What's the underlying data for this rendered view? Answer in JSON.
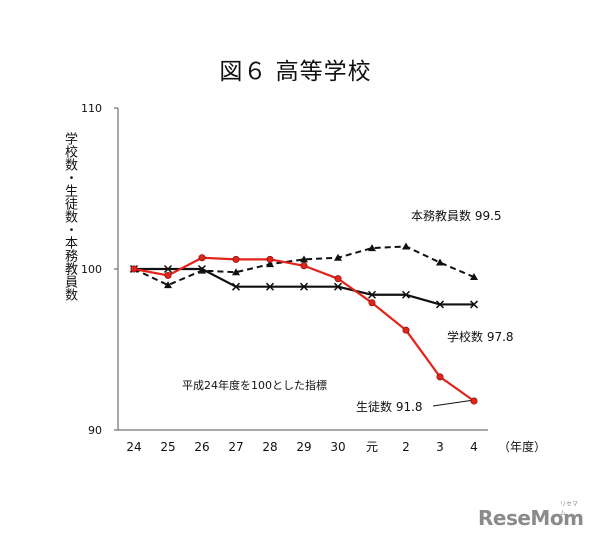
{
  "title": "図６ 高等学校",
  "ylabel": "学校数・生徒数・本務教員数",
  "note": "平成24年度を100とした指標",
  "logo": {
    "text": "ReseMom",
    "small": "リセマム"
  },
  "chart_data": {
    "type": "line",
    "title": "図６ 高等学校",
    "ylabel": "学校数・生徒数・本務教員数",
    "xlabel": "（年度）",
    "x": [
      "24",
      "25",
      "26",
      "27",
      "28",
      "29",
      "30",
      "元",
      "2",
      "3",
      "4"
    ],
    "yticks": [
      90,
      100,
      110
    ],
    "ylim": [
      90,
      110
    ],
    "grid": false,
    "series": [
      {
        "name": "本務教員数",
        "label": "本務教員数 99.5",
        "color": "#111111",
        "style": "dashed",
        "marker": "triangle",
        "values": [
          100.0,
          99.0,
          99.9,
          99.8,
          100.3,
          100.6,
          100.7,
          101.3,
          101.4,
          100.4,
          99.5
        ]
      },
      {
        "name": "学校数",
        "label": "学校数 97.8",
        "color": "#111111",
        "style": "solid",
        "marker": "x",
        "values": [
          100.0,
          100.0,
          100.0,
          98.9,
          98.9,
          98.9,
          98.9,
          98.4,
          98.4,
          97.8,
          97.8
        ]
      },
      {
        "name": "生徒数",
        "label": "生徒数 91.8",
        "color": "#e2231a",
        "style": "solid",
        "marker": "dot",
        "values": [
          100.0,
          99.6,
          100.7,
          100.6,
          100.6,
          100.2,
          99.4,
          97.9,
          96.2,
          93.3,
          91.8
        ]
      }
    ]
  }
}
